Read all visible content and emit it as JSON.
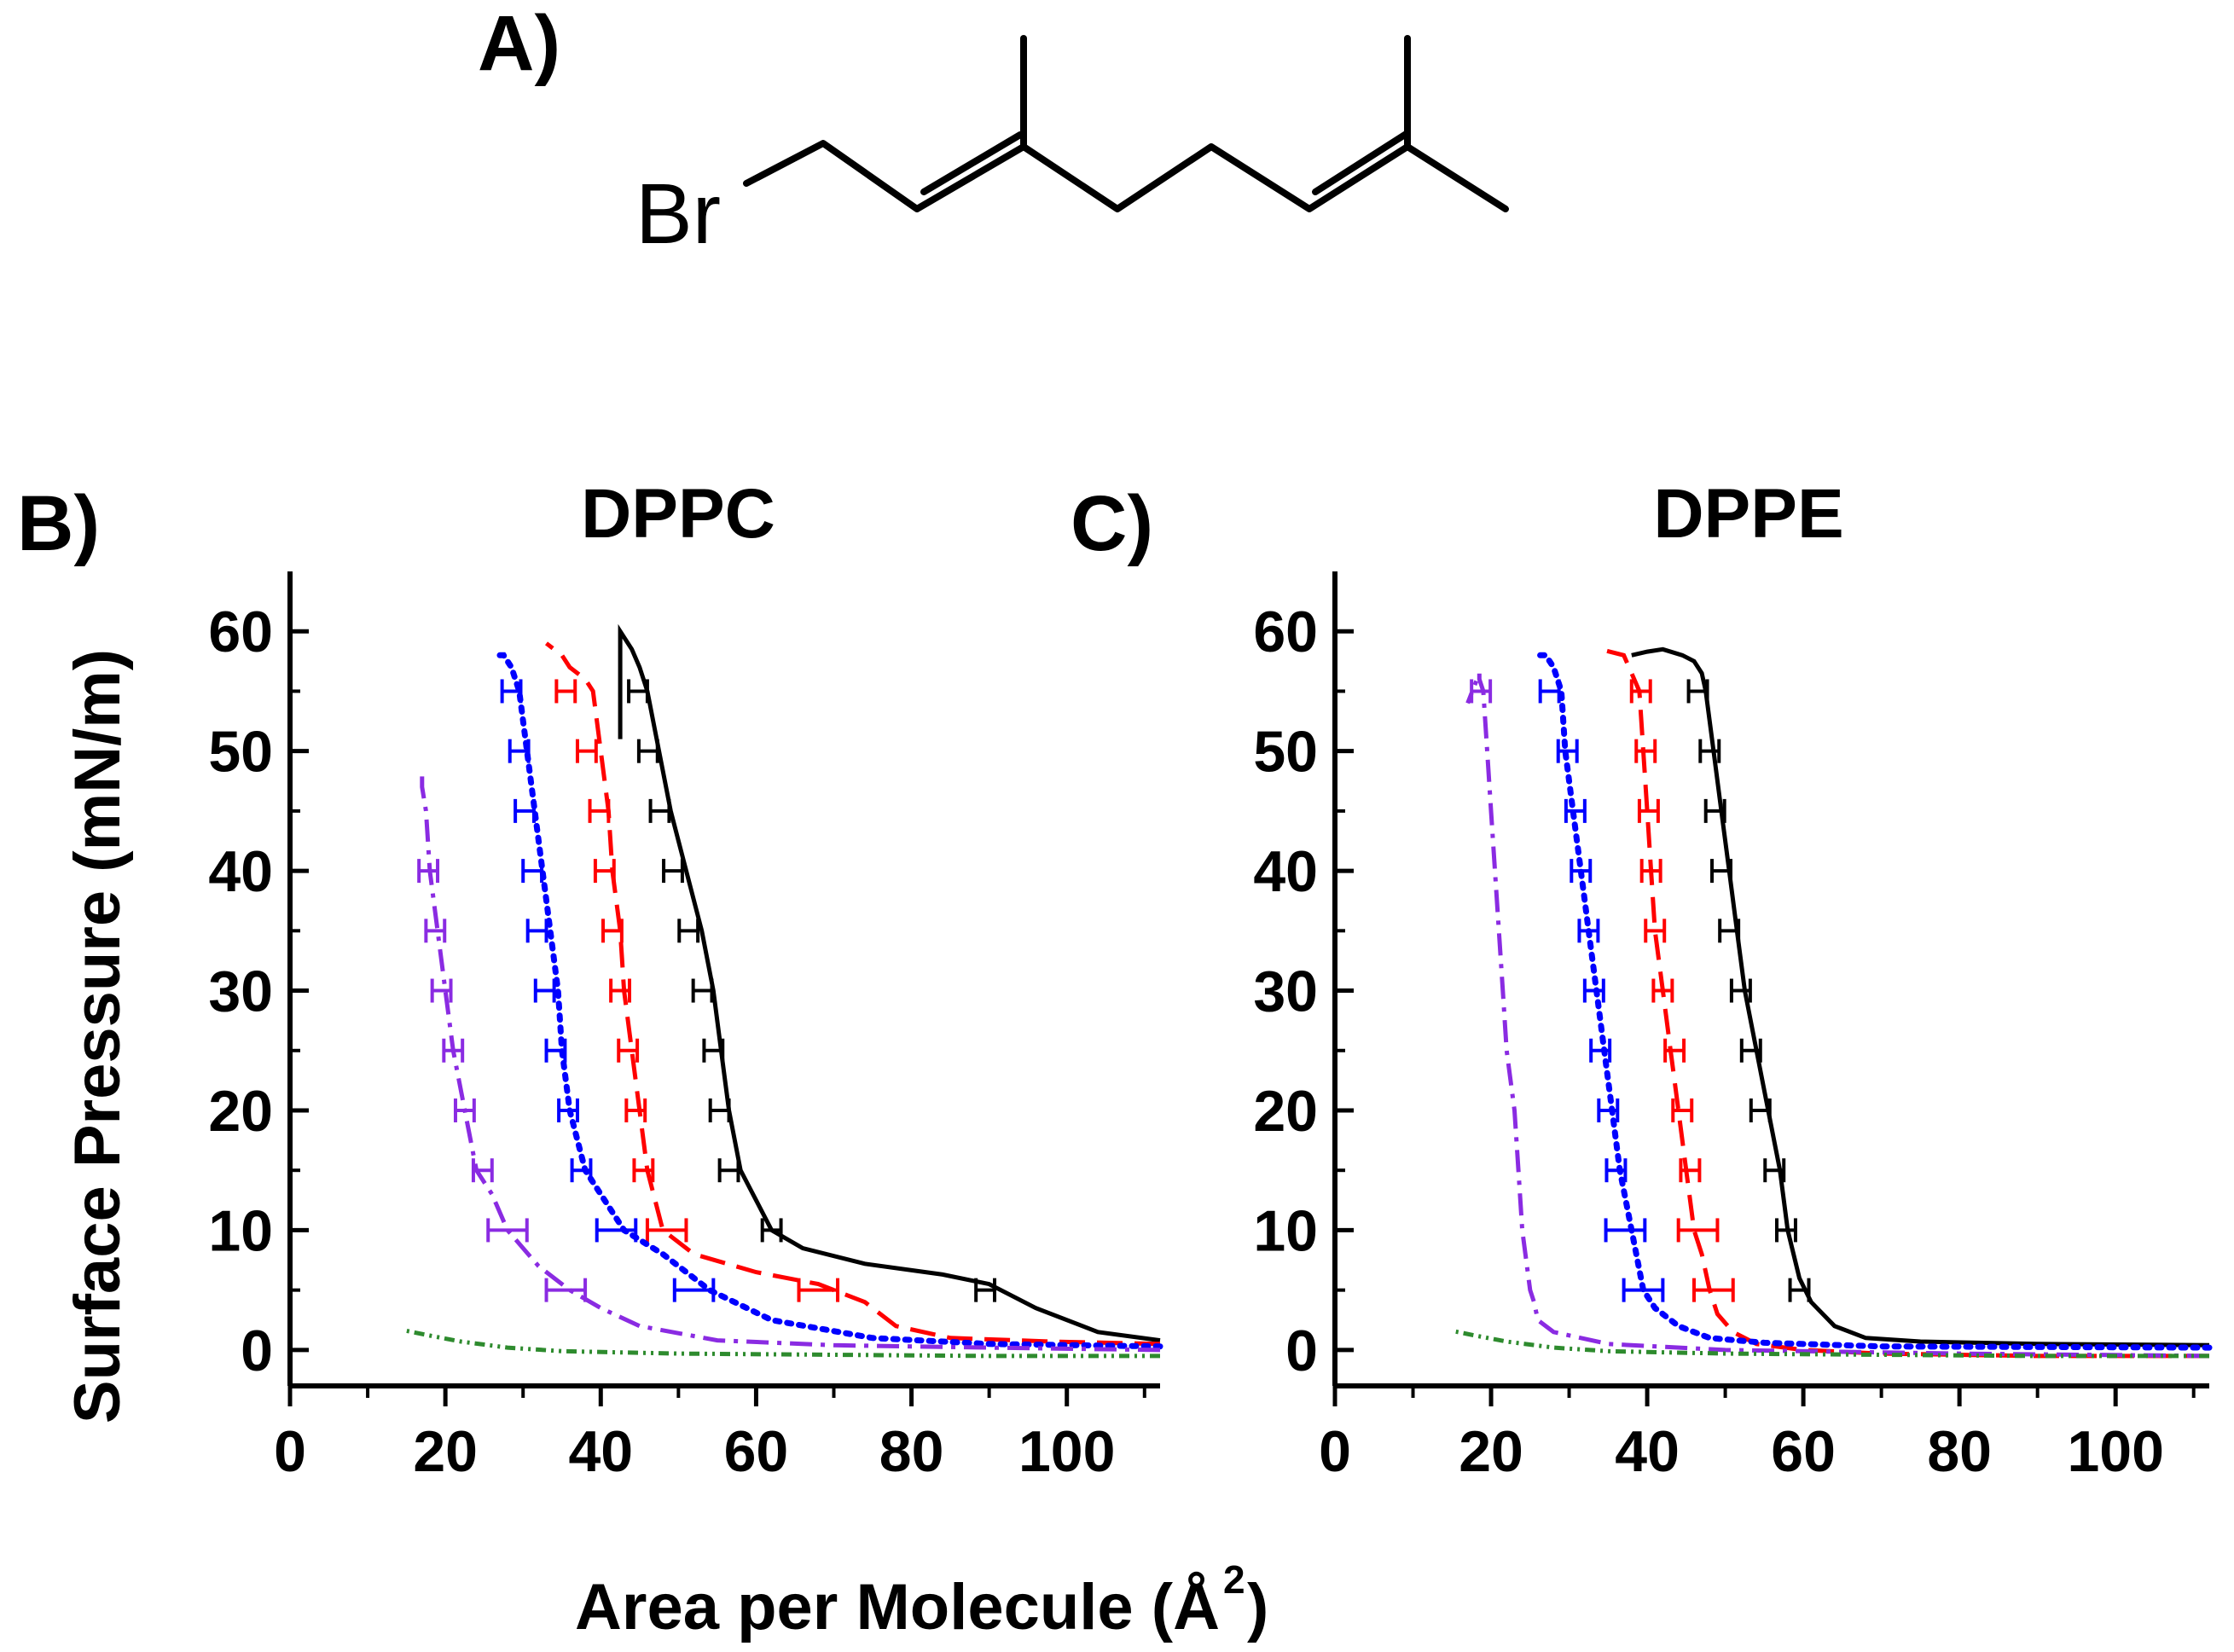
{
  "figure": {
    "panel_labels": [
      "A)",
      "B)",
      "C)"
    ],
    "molecule": {
      "atom_label": "Br",
      "name": "geranyl bromide"
    },
    "shared_ylabel": "Surface Pressure (mN/m)",
    "shared_xlabel": "Area per Molecule (Å",
    "shared_xlabel_sup": "2",
    "shared_xlabel_close": ")"
  },
  "chart_data": [
    {
      "type": "line",
      "panel": "B)",
      "title": "DPPC",
      "xlabel": "Area per Molecule (Å2)",
      "ylabel": "Surface Pressure (mN/m)",
      "xlim": [
        0,
        112
      ],
      "ylim": [
        -3,
        65
      ],
      "xticks": [
        0,
        20,
        40,
        60,
        80,
        100
      ],
      "yticks": [
        0,
        10,
        20,
        30,
        40,
        50,
        60
      ],
      "series": [
        {
          "name": "black-solid",
          "color": "#000000",
          "dash": "",
          "x": [
            112,
            104,
            96,
            90,
            84,
            74,
            66,
            62,
            58,
            56.5,
            55.5,
            54.5,
            53,
            51,
            49,
            47.5,
            46,
            45,
            44,
            42.5,
            42.5
          ],
          "y": [
            0.8,
            1.5,
            3.5,
            5.5,
            6.3,
            7.2,
            8.5,
            10,
            15,
            20,
            25,
            30,
            35,
            40,
            45,
            50,
            55,
            57,
            58.5,
            60,
            51
          ],
          "err_y": [
            5,
            10,
            15,
            20,
            25,
            30,
            35,
            40,
            45,
            50,
            55
          ],
          "err_x": [
            89.5,
            62,
            56.5,
            55.3,
            54.5,
            53.1,
            51.3,
            49.3,
            47.6,
            46.1,
            44.8
          ]
        },
        {
          "name": "red-dashed",
          "color": "#ff0000",
          "dash": "30 14",
          "x": [
            112,
            98,
            85,
            78,
            74,
            68,
            60,
            52,
            48,
            46,
            45,
            44,
            43,
            42.5,
            41.5,
            41,
            40,
            39,
            38,
            36,
            35,
            33
          ],
          "y": [
            0.5,
            0.7,
            1,
            2,
            4,
            5.5,
            6.5,
            8,
            10,
            15,
            20,
            25,
            30,
            35,
            40,
            45,
            50,
            55,
            56,
            57,
            58,
            59
          ],
          "err_y": [
            5,
            10,
            15,
            20,
            25,
            30,
            35,
            40,
            45,
            50,
            55
          ],
          "err_x": [
            68,
            48.5,
            45.5,
            44.5,
            43.5,
            42.5,
            41.5,
            40.5,
            39.8,
            38.2,
            35.5
          ]
        },
        {
          "name": "blue-dotted",
          "color": "#0000ff",
          "dash": "5 9",
          "x": [
            112,
            90,
            75,
            62,
            54,
            48,
            43,
            40,
            38,
            36,
            35,
            34.5,
            33.5,
            32.5,
            31.5,
            30.5,
            29.5,
            28.5,
            27.5,
            27
          ],
          "y": [
            0.3,
            0.5,
            1,
            2.5,
            5,
            8,
            10,
            13,
            15,
            20,
            25,
            30,
            35,
            40,
            45,
            50,
            55,
            57,
            58,
            58
          ],
          "err_y": [
            5,
            10,
            15,
            20,
            25,
            30,
            35,
            40,
            45,
            50,
            55
          ],
          "err_x": [
            52,
            42,
            37.5,
            35.8,
            34.2,
            32.8,
            31.8,
            31.2,
            30.2,
            29.5,
            28.5
          ]
        },
        {
          "name": "purple-dashdot",
          "color": "#8a2be2",
          "dash": "26 10 5 10",
          "x": [
            112,
            90,
            70,
            55,
            45,
            40,
            36,
            32,
            28,
            26,
            24,
            22.5,
            21,
            20,
            19,
            18,
            17.5,
            17,
            17
          ],
          "y": [
            0,
            0.2,
            0.4,
            0.8,
            2,
            3.5,
            5,
            7,
            10,
            13,
            15,
            20,
            25,
            30,
            35,
            40,
            45,
            47,
            48.5
          ],
          "err_y": [
            5,
            10,
            15,
            20,
            25,
            30,
            35,
            40
          ],
          "err_x": [
            35.5,
            28,
            24.8,
            22.5,
            21,
            19.5,
            18.7,
            17.8
          ]
        },
        {
          "name": "green-dashdotdot",
          "color": "#2e8b2e",
          "dash": "12 6 3 6 3 6",
          "x": [
            112,
            90,
            70,
            50,
            35,
            28,
            22,
            18,
            15
          ],
          "y": [
            -0.5,
            -0.5,
            -0.4,
            -0.3,
            -0.1,
            0.2,
            0.7,
            1.2,
            1.6
          ],
          "err_y": [],
          "err_x": []
        }
      ]
    },
    {
      "type": "line",
      "panel": "C)",
      "title": "DPPE",
      "xlabel": "Area per Molecule (Å2)",
      "ylabel": "Surface Pressure (mN/m)",
      "xlim": [
        0,
        112
      ],
      "ylim": [
        -3,
        65
      ],
      "xticks": [
        0,
        20,
        40,
        60,
        80,
        100
      ],
      "yticks": [
        0,
        10,
        20,
        30,
        40,
        50,
        60
      ],
      "series": [
        {
          "name": "black-solid",
          "color": "#000000",
          "dash": "",
          "x": [
            112,
            90,
            75,
            68,
            64,
            61,
            59.5,
            58,
            57,
            55.5,
            54,
            52.5,
            51.5,
            50.5,
            49.5,
            48.5,
            47.5,
            47,
            46,
            44.5,
            42,
            40,
            38
          ],
          "y": [
            0.4,
            0.5,
            0.7,
            1,
            2,
            4,
            6,
            10,
            15,
            20,
            25,
            30,
            35,
            40,
            45,
            50,
            55,
            56.5,
            57.5,
            58,
            58.5,
            58.3,
            58
          ],
          "err_y": [
            5,
            10,
            15,
            20,
            25,
            30,
            35,
            40,
            45,
            50,
            55
          ],
          "err_x": [
            59.5,
            57.8,
            56.3,
            54.5,
            53.3,
            52,
            50.5,
            49.5,
            48.7,
            48,
            46.5
          ]
        },
        {
          "name": "red-dashed",
          "color": "#ff0000",
          "dash": "30 14",
          "x": [
            112,
            90,
            70,
            60,
            54,
            51,
            49,
            48,
            47,
            46,
            45,
            44,
            43,
            42,
            41,
            40.5,
            40,
            39.5,
            39,
            37,
            34
          ],
          "y": [
            -0.5,
            -0.5,
            -0.3,
            0,
            0.5,
            1.5,
            3,
            5,
            8,
            10,
            15,
            20,
            25,
            30,
            35,
            40,
            45,
            50,
            55,
            58,
            58.5
          ],
          "err_y": [
            5,
            10,
            15,
            20,
            25,
            30,
            35,
            40,
            45,
            50,
            55
          ],
          "err_x": [
            48.5,
            46.5,
            45.5,
            44.5,
            43.5,
            42,
            41,
            40.5,
            40.2,
            39.8,
            39.2
          ]
        },
        {
          "name": "blue-dotted",
          "color": "#0000ff",
          "dash": "5 9",
          "x": [
            112,
            70,
            55,
            48,
            44,
            41,
            39.5,
            38,
            36.5,
            35.5,
            34.5,
            33.5,
            32.5,
            31.5,
            30.5,
            29.5,
            29,
            28,
            27,
            26
          ],
          "y": [
            0.2,
            0.3,
            0.6,
            1,
            2,
            3.5,
            5,
            10,
            15,
            20,
            25,
            30,
            35,
            40,
            45,
            50,
            55,
            57,
            58,
            58
          ],
          "err_y": [
            5,
            10,
            15,
            20,
            25,
            30,
            35,
            40,
            45,
            50,
            55
          ],
          "err_x": [
            39.5,
            37.2,
            36,
            35,
            34,
            33.2,
            32.5,
            31.5,
            30.8,
            29.8,
            27.5
          ]
        },
        {
          "name": "purple-dashdot",
          "color": "#8a2be2",
          "dash": "26 10 5 10",
          "x": [
            112,
            80,
            50,
            35,
            28,
            26,
            25.5,
            25,
            24,
            23.5,
            23,
            22,
            21.5,
            21,
            20.5,
            20,
            19.5,
            19,
            18.5,
            18.5,
            17
          ],
          "y": [
            -0.5,
            -0.3,
            0,
            0.5,
            1.5,
            2.5,
            4,
            5,
            10,
            15,
            20,
            25,
            30,
            35,
            40,
            45,
            50,
            55,
            56,
            56.5,
            54
          ],
          "err_y": [
            55
          ],
          "err_x": [
            18.7
          ]
        },
        {
          "name": "green-dashdotdot",
          "color": "#2e8b2e",
          "dash": "12 6 3 6 3 6",
          "x": [
            112,
            90,
            70,
            50,
            35,
            28,
            22,
            18,
            15
          ],
          "y": [
            -0.5,
            -0.5,
            -0.4,
            -0.3,
            -0.1,
            0.2,
            0.7,
            1.2,
            1.6
          ],
          "err_y": [],
          "err_x": []
        }
      ]
    }
  ]
}
